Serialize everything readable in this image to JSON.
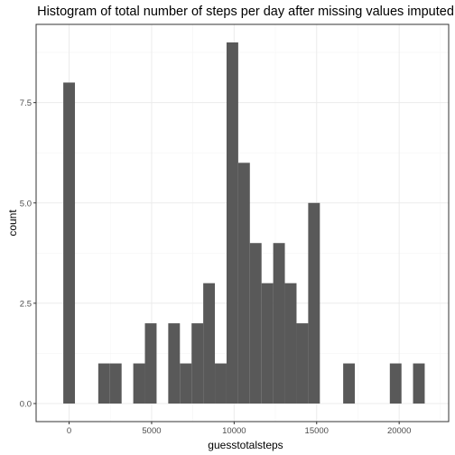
{
  "chart_data": {
    "type": "bar",
    "title": "Histogram of total number of steps per day after missing values imputed",
    "xlabel": "guesstotalsteps",
    "ylabel": "count",
    "bin_width": 706.7,
    "bins": [
      {
        "x": 0,
        "count": 8
      },
      {
        "x": 2120,
        "count": 1
      },
      {
        "x": 2827,
        "count": 1
      },
      {
        "x": 4240,
        "count": 1
      },
      {
        "x": 4947,
        "count": 2
      },
      {
        "x": 6360,
        "count": 2
      },
      {
        "x": 7067,
        "count": 1
      },
      {
        "x": 7774,
        "count": 2
      },
      {
        "x": 8480,
        "count": 3
      },
      {
        "x": 9187,
        "count": 1
      },
      {
        "x": 9894,
        "count": 9
      },
      {
        "x": 10600,
        "count": 6
      },
      {
        "x": 11307,
        "count": 4
      },
      {
        "x": 12014,
        "count": 3
      },
      {
        "x": 12720,
        "count": 4
      },
      {
        "x": 13427,
        "count": 3
      },
      {
        "x": 14134,
        "count": 2
      },
      {
        "x": 14840,
        "count": 5
      },
      {
        "x": 16960,
        "count": 1
      },
      {
        "x": 19787,
        "count": 1
      },
      {
        "x": 21194,
        "count": 1
      }
    ],
    "xlim": [
      -2000,
      23000
    ],
    "ylim": [
      -0.45,
      9.45
    ],
    "x_ticks": [
      0,
      5000,
      10000,
      15000,
      20000
    ],
    "x_tick_labels": [
      "0",
      "5000",
      "10000",
      "15000",
      "20000"
    ],
    "y_ticks": [
      0,
      2.5,
      5,
      7.5
    ],
    "y_tick_labels": [
      "0.0",
      "2.5",
      "5.0",
      "7.5"
    ],
    "grid": true,
    "colors": {
      "bar": "#595959",
      "grid_major": "#ebebeb",
      "grid_minor": "#f5f5f5",
      "panel_border": "#333333",
      "tick_label": "#4d4d4d"
    }
  }
}
